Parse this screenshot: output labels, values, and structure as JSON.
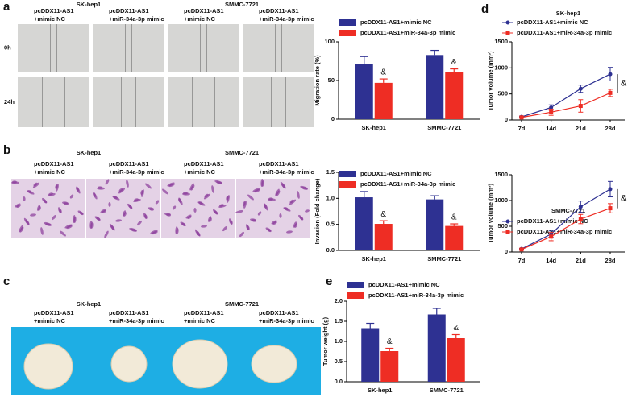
{
  "panel_letters": [
    "a",
    "b",
    "c",
    "d",
    "e"
  ],
  "image_panels": [
    {
      "cell_lines": [
        "SK-hep1",
        "SMMC-7721"
      ],
      "groups": [
        [
          "pcDDX11-AS1",
          "+mimic NC"
        ],
        [
          "pcDDX11-AS1",
          "+miR-34a-3p mimic"
        ]
      ],
      "times": [
        "0h",
        "24h"
      ]
    },
    {
      "cell_lines": [
        "SK-hep1",
        "SMMC-7721"
      ],
      "groups": [
        [
          "pcDDX11-AS1",
          "+mimic NC"
        ],
        [
          "pcDDX11-AS1",
          "+miR-34a-3p mimic"
        ]
      ]
    },
    {
      "cell_lines": [
        "SK-hep1",
        "SMMC-7721"
      ],
      "groups": [
        [
          "pcDDX11-AS1",
          "+mimic NC"
        ],
        [
          "pcDDX11-AS1",
          "+miR-34a-3p mimic"
        ]
      ]
    }
  ],
  "chart_data": [
    {
      "type": "bar",
      "ylabel": "Migration rate (%)",
      "categories": [
        "SK-hep1",
        "SMMC-7721"
      ],
      "annotation": "&",
      "ylim": [
        0,
        100
      ],
      "yticks": [
        0,
        50,
        100
      ],
      "series": [
        {
          "name": "pcDDX11-AS1+mimic NC",
          "color": "#2e3192",
          "values": [
            71,
            83
          ],
          "errors": [
            10,
            6
          ]
        },
        {
          "name": "pcDDX11-AS1+miR-34a-3p mimic",
          "color": "#ee2d24",
          "values": [
            47,
            61
          ],
          "errors": [
            5,
            4
          ]
        }
      ]
    },
    {
      "type": "bar",
      "ylabel": "Invasion (Fold change)",
      "categories": [
        "SK-hep1",
        "SMMC-7721"
      ],
      "annotation": "&",
      "ylim": [
        0,
        1.5
      ],
      "yticks": [
        {
          "value": 0,
          "label": "0.0"
        },
        0.5,
        {
          "value": 1,
          "label": "1.0"
        },
        1.5
      ],
      "series": [
        {
          "name": "pcDDX11-AS1+mimic NC",
          "color": "#2e3192",
          "values": [
            1.02,
            0.98
          ],
          "errors": [
            0.11,
            0.07
          ]
        },
        {
          "name": "pcDDX11-AS1+miR-34a-3p mimic",
          "color": "#ee2d24",
          "values": [
            0.51,
            0.47
          ],
          "errors": [
            0.06,
            0.04
          ]
        }
      ]
    },
    {
      "type": "bar",
      "ylabel": "Tumor weight (g)",
      "categories": [
        "SK-hep1",
        "SMMC-7721"
      ],
      "annotation": "&",
      "ylim": [
        0,
        2
      ],
      "yticks": [
        {
          "value": 0,
          "label": "0.0"
        },
        0.5,
        {
          "value": 1,
          "label": "1.0"
        },
        1.5,
        {
          "value": 2,
          "label": "2.0"
        }
      ],
      "series": [
        {
          "name": "pcDDX11-AS1+mimic NC",
          "color": "#2e3192",
          "values": [
            1.33,
            1.67
          ],
          "errors": [
            0.12,
            0.15
          ]
        },
        {
          "name": "pcDDX11-AS1+miR-34a-3p mimic",
          "color": "#ee2d24",
          "values": [
            0.76,
            1.08
          ],
          "errors": [
            0.07,
            0.09
          ]
        }
      ]
    },
    {
      "type": "line",
      "title": "SK-hep1",
      "ylabel": "Tumor volume (mm³)",
      "categories": [
        "7d",
        "14d",
        "21d",
        "28d"
      ],
      "annotation": "&",
      "ylim": [
        0,
        1500
      ],
      "yticks": [
        0,
        500,
        1000,
        1500
      ],
      "series": [
        {
          "name": "pcDDX11-AS1+mimic NC",
          "color": "#2e3192",
          "values": [
            60,
            240,
            600,
            880
          ],
          "errors": [
            15,
            50,
            70,
            130
          ]
        },
        {
          "name": "pcDDX11-AS1+miR-34a-3p mimic",
          "color": "#ee2d24",
          "values": [
            50,
            150,
            270,
            520
          ],
          "errors": [
            10,
            60,
            120,
            70
          ]
        }
      ]
    },
    {
      "type": "line",
      "title": "SMMC-7721",
      "ylabel": "Tumor volume (mm³)",
      "categories": [
        "7d",
        "14d",
        "21d",
        "28d"
      ],
      "annotation": "&",
      "ylim": [
        0,
        1500
      ],
      "yticks": [
        0,
        500,
        1000,
        1500
      ],
      "series": [
        {
          "name": "pcDDX11-AS1+mimic NC",
          "color": "#2e3192",
          "values": [
            60,
            350,
            880,
            1220
          ],
          "errors": [
            10,
            60,
            110,
            150
          ]
        },
        {
          "name": "pcDDX11-AS1+miR-34a-3p mimic",
          "color": "#ee2d24",
          "values": [
            50,
            300,
            640,
            850
          ],
          "errors": [
            10,
            80,
            90,
            90
          ]
        }
      ]
    }
  ]
}
